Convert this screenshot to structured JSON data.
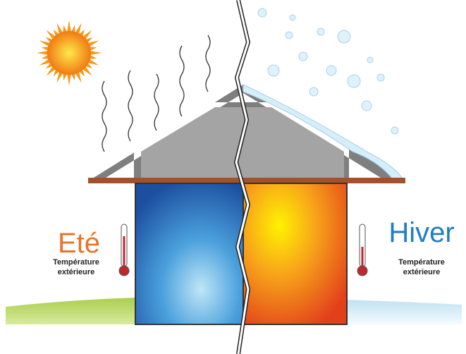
{
  "summer": {
    "title": "Eté",
    "caption": [
      "Température",
      "extérieure"
    ]
  },
  "winter": {
    "title": "Hiver",
    "caption": [
      "Température",
      "extérieure"
    ]
  }
}
